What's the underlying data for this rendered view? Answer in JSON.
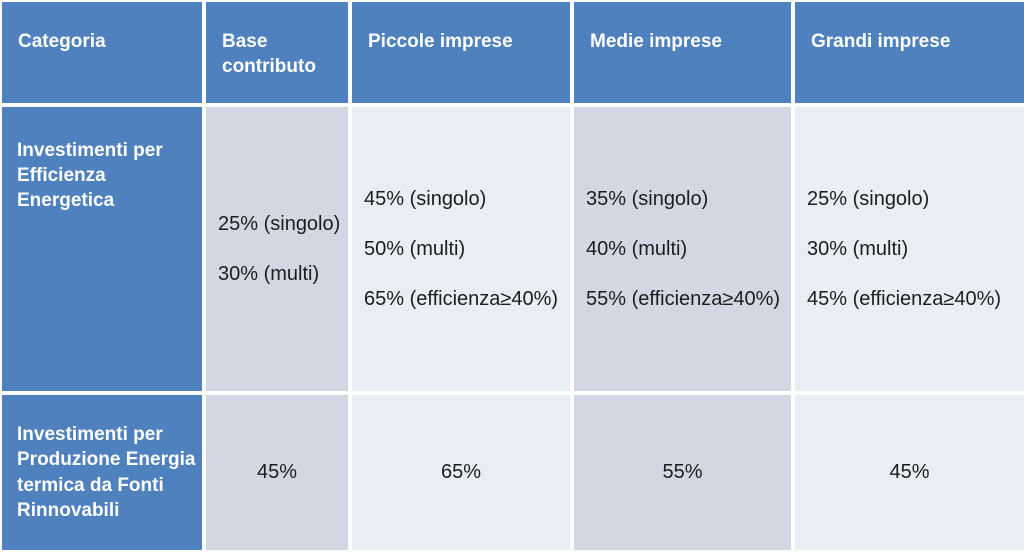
{
  "table": {
    "header": [
      "Categoria",
      "Base contributo",
      "Piccole imprese",
      "Medie imprese",
      "Grandi imprese"
    ],
    "rows": [
      {
        "category": "Investimenti per Efficienza Energetica",
        "cells": [
          [
            "25% (singolo)",
            "30% (multi)"
          ],
          [
            "45% (singolo)",
            "50% (multi)",
            "65% (efficienza≥40%)"
          ],
          [
            "35% (singolo)",
            "40% (multi)",
            "55% (efficienza≥40%)"
          ],
          [
            "25% (singolo)",
            "30% (multi)",
            "45% (efficienza≥40%)"
          ]
        ]
      },
      {
        "category": "Investimenti per Produzione Energia termica da Fonti Rinnovabili",
        "cells": [
          [
            "45%"
          ],
          [
            "65%"
          ],
          [
            "55%"
          ],
          [
            "45%"
          ]
        ]
      }
    ],
    "colors": {
      "header_blue": "#4E81BD",
      "band_dark": "#D2D7E3",
      "band_light": "#E9EDF4",
      "gridline": "#FFFFFF",
      "header_text": "#FFFFFF",
      "body_text": "#1D1D1D"
    }
  }
}
